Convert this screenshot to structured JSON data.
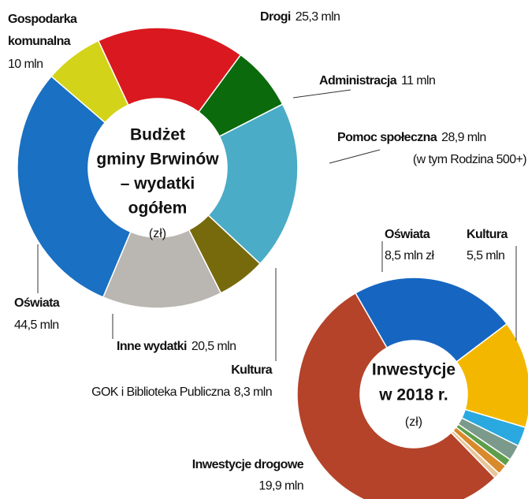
{
  "chart_data": [
    {
      "type": "pie",
      "donut": true,
      "title": [
        "Budżet",
        "gminy Brwinów",
        "– wydatki",
        "ogółem"
      ],
      "unit": "(zł)",
      "categories": [
        "Drogi",
        "Administracja",
        "Pomoc społeczna",
        "Kultura",
        "Inne wydatki",
        "Oświata",
        "Gospodarka komunalna"
      ],
      "values": [
        25.3,
        11,
        28.9,
        8.3,
        20.5,
        44.5,
        10
      ],
      "value_labels": [
        "25,3 mln",
        "11 mln",
        "28,9 mln",
        "8,3 mln",
        "20,5 mln",
        "44,5 mln",
        "10 mln"
      ],
      "notes": [
        null,
        null,
        "(w tym Rodzina 500+)",
        "GOK i Biblioteka Publiczna",
        null,
        null,
        null
      ],
      "colors": [
        "#d9191f",
        "#0b6a0b",
        "#4aacc6",
        "#776a0c",
        "#bab6b1",
        "#1a70c2",
        "#d3d31a"
      ]
    },
    {
      "type": "pie",
      "donut": true,
      "title": [
        "Inwestycje",
        "w 2018 r."
      ],
      "unit": "(zł)",
      "categories": [
        "Oświata",
        "Kultura",
        null,
        null,
        null,
        null,
        null,
        "Inwestycje drogowe"
      ],
      "values": [
        8.5,
        5.5,
        1.0,
        0.8,
        0.4,
        0.5,
        0.3,
        19.9
      ],
      "value_labels": [
        "8,5 mln zł",
        "5,5 mln",
        null,
        null,
        null,
        null,
        null,
        "19,9 mln"
      ],
      "colors": [
        "#1666c1",
        "#f4b700",
        "#2aa8e0",
        "#7b9a8b",
        "#5d9e4b",
        "#d98a2c",
        "#e8c69a",
        "#b4432a"
      ]
    }
  ]
}
